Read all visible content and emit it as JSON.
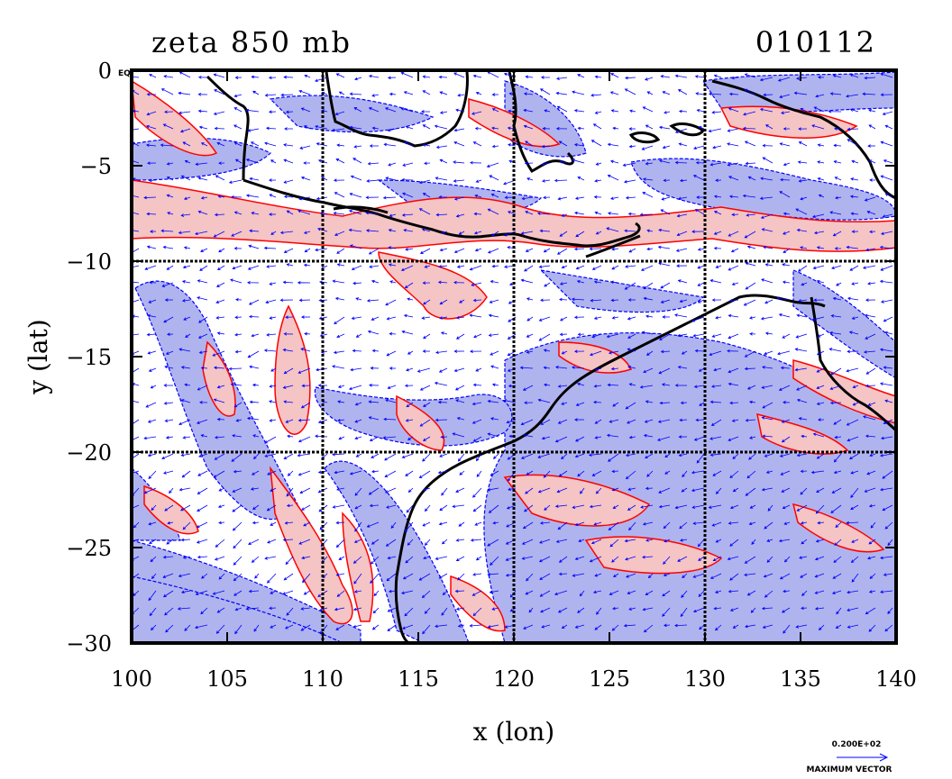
{
  "title_left": "zeta 850 mb",
  "title_right": "010112",
  "equator_tag": "EQ",
  "xlabel": "x (lon)",
  "ylabel": "y (lat)",
  "vector_legend": {
    "magnitude": "0.200E+02",
    "label": "MAXIMUM VECTOR"
  },
  "colors": {
    "positive_fill": "#f5c4c4",
    "positive_line": "#ff0000",
    "negative_fill": "#b0b4ee",
    "negative_line": "#0000ff",
    "coastline": "#000000",
    "vectors": "#0000ff"
  },
  "chart_data": {
    "type": "heatmap",
    "variable": "zeta",
    "level": "850 mb",
    "xlim": [
      100,
      140
    ],
    "ylim": [
      -30,
      0
    ],
    "xticks": [
      100,
      105,
      110,
      115,
      120,
      125,
      130,
      135,
      140
    ],
    "yticks": [
      0,
      -5,
      -10,
      -15,
      -20,
      -25,
      -30
    ],
    "xtick_labels": [
      "100",
      "105",
      "110",
      "115",
      "120",
      "125",
      "130",
      "135",
      "140"
    ],
    "ytick_labels": [
      "0",
      "−5",
      "−10",
      "−15",
      "−20",
      "−25",
      "−30"
    ],
    "grid_lon": [
      110,
      120,
      130
    ],
    "grid_lat": [
      -10,
      -20
    ],
    "grid": true
  }
}
